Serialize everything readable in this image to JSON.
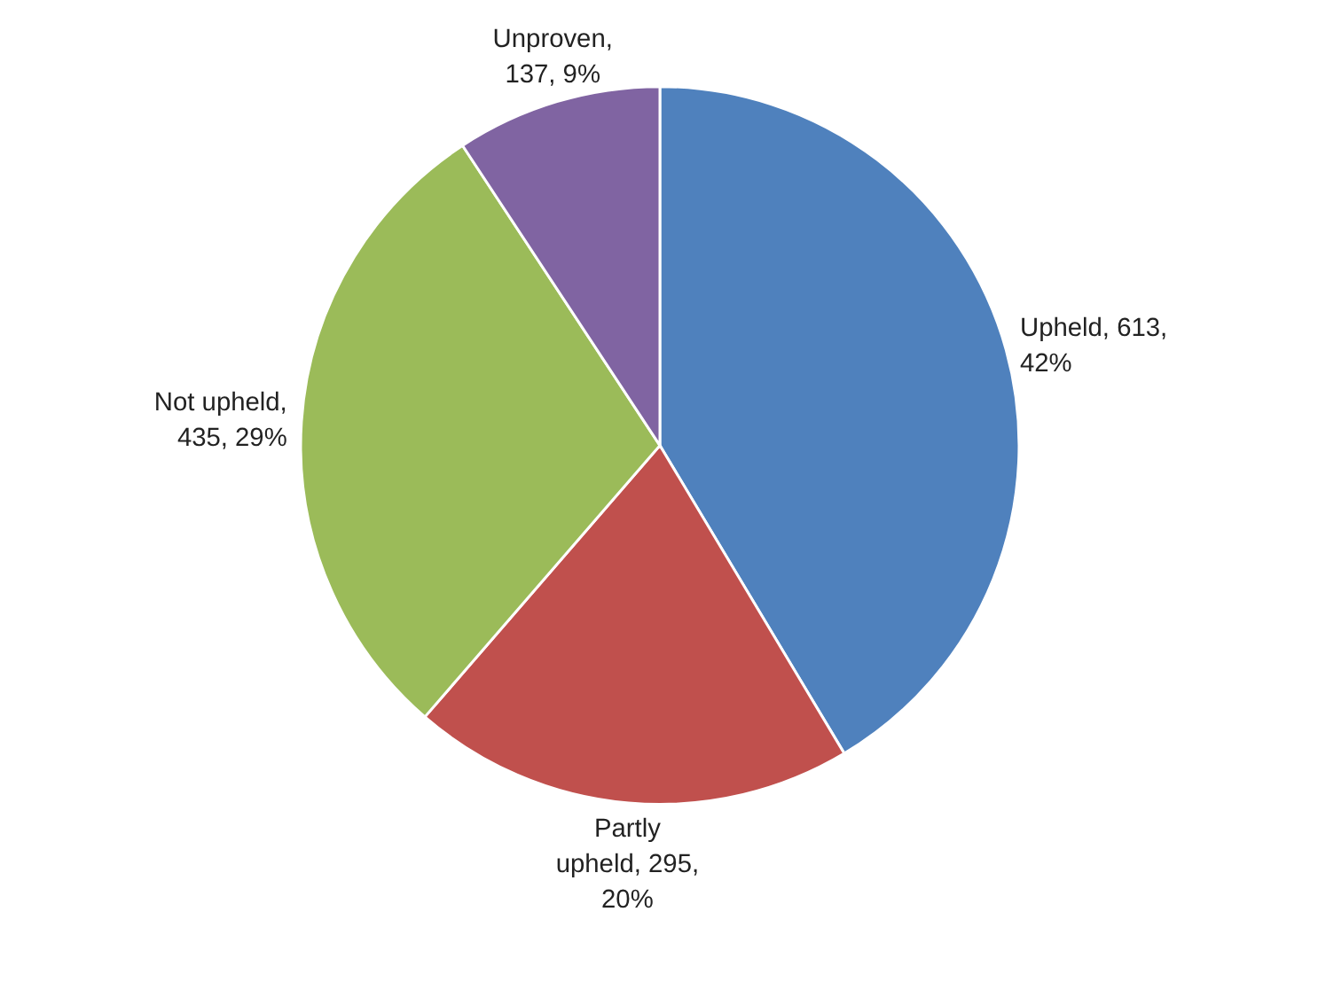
{
  "chart_data": {
    "type": "pie",
    "categories": [
      "Upheld",
      "Partly upheld",
      "Not upheld",
      "Unproven"
    ],
    "values": [
      613,
      295,
      435,
      137
    ],
    "colors": [
      "#4f81bd",
      "#c0504d",
      "#9bbb59",
      "#8064a2"
    ],
    "value_labels": [
      ", 613, 42%",
      ", 295, 20%",
      ", 435, 29%",
      ", 137, 9%"
    ]
  }
}
